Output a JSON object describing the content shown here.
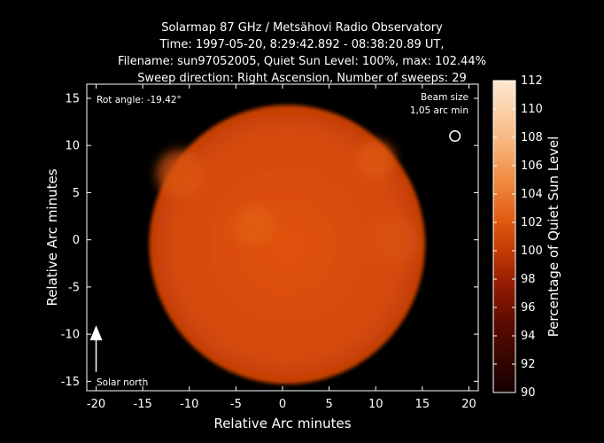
{
  "chart_data": {
    "type": "heatmap",
    "title_lines": [
      "Solarmap 87 GHz / Metsähovi Radio Observatory",
      "Time: 1997-05-20,  8:29:42.892 - 08:38:20.89 UT,",
      "Filename: sun97052005, Quiet Sun Level: 100%, max: 102.44%",
      "Sweep direction: Right Ascension, Number of sweeps: 29"
    ],
    "xlabel": "Relative Arc minutes",
    "ylabel": "Relative Arc minutes",
    "xlim": [
      -21,
      21
    ],
    "ylim": [
      -16,
      16.5
    ],
    "xticks": [
      -20,
      -15,
      -10,
      -5,
      0,
      5,
      10,
      15,
      20
    ],
    "yticks": [
      -15,
      -10,
      -5,
      0,
      5,
      10,
      15
    ],
    "disk": {
      "center": [
        0.5,
        -0.5
      ],
      "radius": 14.8,
      "level_percent": 100
    },
    "colorbar": {
      "label": "Percentage of Quiet Sun Level",
      "min": 90,
      "max": 112,
      "ticks": [
        90,
        92,
        94,
        96,
        98,
        100,
        102,
        104,
        106,
        108,
        110,
        112
      ]
    },
    "annotations": {
      "rot_angle": "Rot angle: -19.42°",
      "beam_size_line1": "Beam size",
      "beam_size_line2": "1,05 arc min",
      "beam_position": [
        18.5,
        11
      ],
      "beam_radius": 0.55,
      "solar_north": "Solar north",
      "north_arrow": {
        "x": -20,
        "from": -14,
        "to": -10
      }
    },
    "hot_spots": [
      {
        "x": -3,
        "y": 1.5,
        "r": 2.2,
        "level_percent": 102.4
      },
      {
        "x": -11,
        "y": 7,
        "r": 2.5,
        "level_percent": 101.8
      },
      {
        "x": 10,
        "y": 8.5,
        "r": 2.0,
        "level_percent": 102.0
      },
      {
        "x": 12,
        "y": 0,
        "r": 2.5,
        "level_percent": 101.5
      }
    ]
  }
}
